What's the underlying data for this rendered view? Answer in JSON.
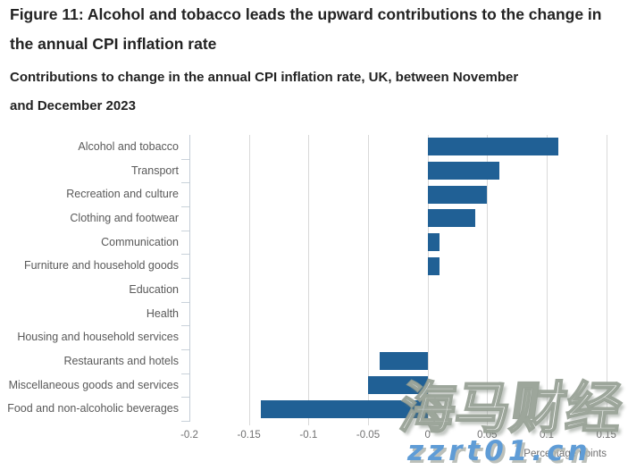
{
  "header": {
    "title": "Figure 11: Alcohol and tobacco leads the upward contributions to the change in the annual CPI inflation rate",
    "subtitle": "Contributions to change in the annual CPI inflation rate, UK, between November and December 2023"
  },
  "chart_data": {
    "type": "bar",
    "orientation": "horizontal",
    "title": "Contributions to change in the annual CPI inflation rate, UK, between November and December 2023",
    "categories": [
      "Alcohol and tobacco",
      "Transport",
      "Recreation and culture",
      "Clothing and footwear",
      "Communication",
      "Furniture and household goods",
      "Education",
      "Health",
      "Housing and household services",
      "Restaurants and hotels",
      "Miscellaneous goods and services",
      "Food and non-alcoholic beverages"
    ],
    "values": [
      0.11,
      0.06,
      0.05,
      0.04,
      0.01,
      0.01,
      0,
      0,
      0,
      -0.04,
      -0.05,
      -0.14
    ],
    "xlabel": "Percentage points",
    "ylabel": "",
    "xlim": [
      -0.2,
      0.175
    ],
    "x_tick_values": [
      -0.2,
      -0.15,
      -0.1,
      -0.05,
      0,
      0.05,
      0.1,
      0.15
    ],
    "x_tick_labels": [
      "-0.2",
      "-0.15",
      "-0.1",
      "-0.05",
      "0",
      "0.05",
      "0.1",
      "0.15"
    ],
    "grid": true,
    "legend": false,
    "bar_color": "#206095"
  },
  "watermark": {
    "cjk_text": "海马财经",
    "site_text": "zzrt01.cn",
    "site_color": "#5f9cd6"
  }
}
